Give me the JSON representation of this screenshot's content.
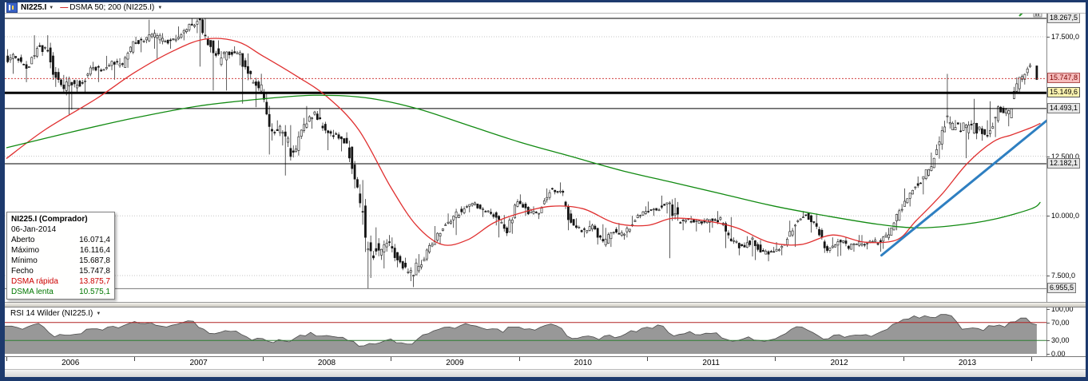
{
  "colors": {
    "frame": "#1d3a6d",
    "candle": "#141414",
    "ma_fast": "#e03030",
    "ma_slow": "#118a11",
    "trendline": "#2e7fc1",
    "current_price_line": "#d04040",
    "rsi_fill": "#8f8f8f",
    "rsi_level_high": "#b22222",
    "rsi_level_low": "#2e7d32"
  },
  "toolbar": {
    "instrument": "NI225.I",
    "dropdown": "▼",
    "legend_dash": "—",
    "indicator": "DSMA 50; 200 (NI225.I)"
  },
  "price_axis": {
    "scale_labels": [
      {
        "price": 17500,
        "text": "17.500,0"
      },
      {
        "price": 12500,
        "text": "12.500,0"
      },
      {
        "price": 10000,
        "text": "10.000,0"
      },
      {
        "price": 7500,
        "text": "7.500,0"
      }
    ],
    "marker_labels": [
      {
        "price": 18267.5,
        "text": "18.267,5",
        "style": "gray"
      },
      {
        "price": 15747.8,
        "text": "15.747,8",
        "style": "pink"
      },
      {
        "price": 15149.6,
        "text": "15.149,6",
        "style": "yellow"
      },
      {
        "price": 14493.1,
        "text": "14.493,1",
        "style": "gray"
      },
      {
        "price": 12182.1,
        "text": "12.182,1",
        "style": "gray"
      },
      {
        "price": 6955.5,
        "text": "6.955,5",
        "style": "gray"
      }
    ]
  },
  "annotations": {
    "gridlines": [
      17500,
      12500,
      10000,
      7500
    ],
    "hlines": [
      {
        "price": 18267.5,
        "color": "#000000",
        "width": 1,
        "dash": ""
      },
      {
        "price": 15747.8,
        "color": "#d04040",
        "width": 1,
        "dash": "2,2"
      },
      {
        "price": 15149.6,
        "color": "#000000",
        "width": 3,
        "dash": ""
      },
      {
        "price": 14493.1,
        "color": "#000000",
        "width": 1,
        "dash": ""
      },
      {
        "price": 12182.1,
        "color": "#000000",
        "width": 1,
        "dash": ""
      },
      {
        "price": 6955.5,
        "color": "#777777",
        "width": 1,
        "dash": ""
      }
    ],
    "trendline": {
      "t1": 2012.83,
      "p1": 8350,
      "t2": 2014.3,
      "p2": 14780,
      "color": "#2e7fc1",
      "width": 3
    }
  },
  "chart_data": {
    "type": "candlestick",
    "symbol": "NI225.I",
    "interval": "monthly",
    "start_year": 2006,
    "ylim": [
      6400,
      18470
    ],
    "closes": [
      16649,
      16205,
      17060,
      16906,
      15467,
      15505,
      15457,
      16141,
      16128,
      16399,
      16274,
      17226,
      17383,
      17604,
      17288,
      17400,
      17876,
      18138,
      17249,
      16569,
      16786,
      16738,
      15681,
      15308,
      13592,
      13603,
      12526,
      13850,
      14339,
      13481,
      13377,
      13073,
      11260,
      8577,
      8512,
      8860,
      7994,
      7568,
      8110,
      8828,
      9523,
      9958,
      10357,
      10493,
      10133,
      10035,
      9346,
      10546,
      10198,
      10126,
      11090,
      11057,
      9769,
      9383,
      9537,
      8824,
      9369,
      9202,
      9937,
      10229,
      10237,
      10624,
      9755,
      9850,
      9694,
      9816,
      9833,
      8955,
      8700,
      8988,
      8435,
      8455,
      8803,
      9723,
      10084,
      9521,
      8543,
      9007,
      8695,
      8840,
      8870,
      8928,
      9446,
      10395,
      11139,
      11559,
      12398,
      13861,
      13775,
      13677,
      13668,
      13389,
      14456,
      14328,
      15662,
      16291,
      15748
    ],
    "highs": [
      16980,
      16750,
      17563,
      17563,
      17250,
      15900,
      15700,
      16300,
      16450,
      16700,
      16600,
      17300,
      17500,
      18215,
      17650,
      17580,
      17930,
      18267,
      18262,
      17350,
      16900,
      17100,
      16800,
      15950,
      15200,
      14000,
      13800,
      14100,
      14600,
      14500,
      13600,
      13500,
      13150,
      11500,
      9520,
      9200,
      9100,
      8250,
      8400,
      8900,
      9575,
      10100,
      10400,
      10600,
      10500,
      10300,
      10000,
      10700,
      10900,
      10400,
      11150,
      11400,
      11100,
      9900,
      9800,
      9650,
      9500,
      9700,
      10000,
      10400,
      10600,
      10850,
      10750,
      9900,
      10000,
      9900,
      10200,
      9950,
      9100,
      9150,
      8900,
      8700,
      8900,
      9800,
      10200,
      10100,
      9550,
      9100,
      9100,
      9200,
      9200,
      9100,
      9500,
      10500,
      11150,
      11650,
      12650,
      13983,
      15943,
      13900,
      14900,
      14000,
      14800,
      14600,
      15800,
      16400,
      16116
    ],
    "lows": [
      15950,
      15600,
      16350,
      16700,
      15400,
      14218,
      14450,
      15150,
      15600,
      16100,
      15700,
      16200,
      16850,
      17000,
      16550,
      17000,
      17350,
      17650,
      16250,
      15250,
      15250,
      16300,
      14700,
      14550,
      12570,
      12950,
      11690,
      12650,
      13650,
      13450,
      12750,
      12700,
      11150,
      6956,
      7400,
      7800,
      7850,
      7268,
      7021,
      8350,
      8800,
      9500,
      9200,
      10150,
      9950,
      9600,
      9100,
      9250,
      10000,
      9870,
      10200,
      10900,
      9400,
      9300,
      9100,
      8800,
      8700,
      9000,
      9100,
      9900,
      10000,
      10100,
      8228,
      9400,
      9350,
      9300,
      9500,
      8650,
      8350,
      8300,
      8150,
      8100,
      8350,
      8700,
      9700,
      9300,
      8450,
      8300,
      8330,
      8500,
      8600,
      8500,
      8620,
      9400,
      10400,
      10900,
      11500,
      12400,
      13600,
      12415,
      13200,
      13150,
      13300,
      13750,
      14100,
      15500,
      15688
    ],
    "ma_fast": {
      "label": "DSMA rápida",
      "value": 13875.7,
      "color": "#e03030",
      "points": [
        [
          2006.0,
          12400
        ],
        [
          2006.3,
          13600
        ],
        [
          2006.7,
          14900
        ],
        [
          2007.0,
          16000
        ],
        [
          2007.3,
          16900
        ],
        [
          2007.55,
          17400
        ],
        [
          2007.8,
          17300
        ],
        [
          2008.0,
          16700
        ],
        [
          2008.25,
          15900
        ],
        [
          2008.5,
          15000
        ],
        [
          2008.75,
          13600
        ],
        [
          2009.0,
          11200
        ],
        [
          2009.2,
          9600
        ],
        [
          2009.4,
          8800
        ],
        [
          2009.6,
          9000
        ],
        [
          2009.8,
          9700
        ],
        [
          2010.0,
          10100
        ],
        [
          2010.25,
          10400
        ],
        [
          2010.5,
          10300
        ],
        [
          2010.75,
          9700
        ],
        [
          2011.0,
          9600
        ],
        [
          2011.2,
          9900
        ],
        [
          2011.45,
          9800
        ],
        [
          2011.7,
          9500
        ],
        [
          2011.95,
          8900
        ],
        [
          2012.2,
          8800
        ],
        [
          2012.45,
          9200
        ],
        [
          2012.7,
          8900
        ],
        [
          2012.95,
          9000
        ],
        [
          2013.1,
          9800
        ],
        [
          2013.3,
          10900
        ],
        [
          2013.5,
          12200
        ],
        [
          2013.7,
          13100
        ],
        [
          2013.85,
          13400
        ],
        [
          2014.0,
          13700
        ],
        [
          2014.07,
          13876
        ]
      ]
    },
    "ma_slow": {
      "label": "DSMA lenta",
      "value": 10575.1,
      "color": "#118a11",
      "points": [
        [
          2006.0,
          12850
        ],
        [
          2006.5,
          13500
        ],
        [
          2007.0,
          14100
        ],
        [
          2007.5,
          14600
        ],
        [
          2008.0,
          14900
        ],
        [
          2008.4,
          15050
        ],
        [
          2008.8,
          14950
        ],
        [
          2009.2,
          14500
        ],
        [
          2009.6,
          13800
        ],
        [
          2010.0,
          13100
        ],
        [
          2010.4,
          12500
        ],
        [
          2010.8,
          11900
        ],
        [
          2011.2,
          11400
        ],
        [
          2011.6,
          10900
        ],
        [
          2012.0,
          10400
        ],
        [
          2012.4,
          10000
        ],
        [
          2012.8,
          9650
        ],
        [
          2013.1,
          9500
        ],
        [
          2013.4,
          9600
        ],
        [
          2013.7,
          9850
        ],
        [
          2014.0,
          10300
        ],
        [
          2014.07,
          10575
        ]
      ]
    },
    "rsi": {
      "label": "RSI 14 Wilder (NI225.I)",
      "range": [
        0,
        100
      ],
      "levels": [
        70,
        30
      ],
      "values": [
        62,
        55,
        65,
        60,
        38,
        42,
        44,
        55,
        56,
        60,
        58,
        68,
        68,
        70,
        62,
        64,
        70,
        73,
        55,
        45,
        52,
        51,
        38,
        35,
        28,
        32,
        27,
        42,
        48,
        40,
        39,
        37,
        28,
        18,
        22,
        30,
        25,
        22,
        33,
        45,
        55,
        60,
        63,
        64,
        58,
        56,
        48,
        60,
        55,
        53,
        64,
        63,
        40,
        35,
        40,
        32,
        42,
        39,
        52,
        57,
        57,
        62,
        40,
        45,
        43,
        46,
        47,
        32,
        30,
        38,
        30,
        31,
        40,
        55,
        60,
        48,
        33,
        42,
        37,
        42,
        43,
        45,
        55,
        70,
        78,
        80,
        82,
        88,
        85,
        55,
        58,
        52,
        62,
        60,
        72,
        80,
        65
      ]
    }
  },
  "tooltip": {
    "title": "NI225.I (Comprador)",
    "date": "06-Jan-2014",
    "rows": [
      {
        "label": "Aberto",
        "value": "16.071,4"
      },
      {
        "label": "Máximo",
        "value": "16.116,4"
      },
      {
        "label": "Mínimo",
        "value": "15.687,8"
      },
      {
        "label": "Fecho",
        "value": "15.747,8"
      },
      {
        "label": "DSMA rápida",
        "value": "13.875,7",
        "color": "#cc0000"
      },
      {
        "label": "DSMA lenta",
        "value": "10.575,1",
        "color": "#007700"
      }
    ]
  },
  "rsi_panel": {
    "title": "RSI 14 Wilder (NI225.I)",
    "dropdown": "▼",
    "axis_labels": [
      {
        "value": 100,
        "text": "100,00"
      },
      {
        "value": 70,
        "text": "70,00"
      },
      {
        "value": 30,
        "text": "30,00"
      },
      {
        "value": 0,
        "text": "0,00"
      }
    ]
  },
  "time_axis": {
    "years": [
      "2006",
      "2007",
      "2008",
      "2009",
      "2010",
      "2011",
      "2012",
      "2013"
    ]
  }
}
